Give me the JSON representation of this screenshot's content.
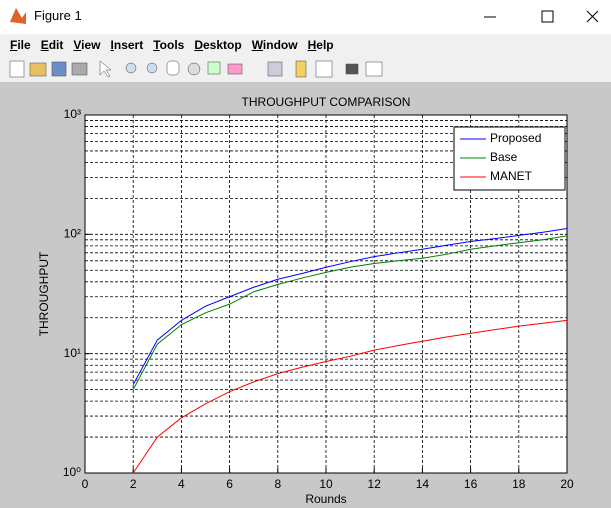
{
  "window": {
    "title": "Figure 1",
    "menu": [
      "File",
      "Edit",
      "View",
      "Insert",
      "Tools",
      "Desktop",
      "Window",
      "Help"
    ]
  },
  "chart_data": {
    "type": "line",
    "title": "THROUGHPUT COMPARISON",
    "x_label": "Rounds",
    "y_label": "THROUGHPUT",
    "x": [
      2,
      3,
      4,
      5,
      6,
      7,
      8,
      9,
      10,
      11,
      12,
      13,
      14,
      15,
      16,
      17,
      18,
      19,
      20
    ],
    "series": [
      {
        "name": "Proposed",
        "color": "#0000ff",
        "values": [
          5.5,
          13,
          19,
          25,
          30,
          36,
          42,
          47,
          53,
          59,
          65,
          70,
          75,
          81,
          87,
          92,
          98,
          104,
          112
        ]
      },
      {
        "name": "Base",
        "color": "#008000",
        "values": [
          5,
          12,
          17.5,
          22,
          26,
          33,
          38,
          43,
          48,
          53,
          57,
          60,
          63,
          68,
          75,
          80,
          85,
          90,
          97
        ]
      },
      {
        "name": "MANET",
        "color": "#ff0000",
        "values": [
          1,
          2,
          2.9,
          3.8,
          4.8,
          5.8,
          6.8,
          7.7,
          8.6,
          9.5,
          10.7,
          11.7,
          12.7,
          13.8,
          14.8,
          15.9,
          17,
          18,
          19
        ]
      }
    ],
    "xlim": [
      0,
      20
    ],
    "xticks": [
      0,
      2,
      4,
      6,
      8,
      10,
      12,
      14,
      16,
      18,
      20
    ],
    "ylim": [
      1,
      1000
    ],
    "yscale": "log",
    "yticks": [
      {
        "value": 1,
        "label": "10⁰"
      },
      {
        "value": 10,
        "label": "10¹"
      },
      {
        "value": 100,
        "label": "10²"
      },
      {
        "value": 1000,
        "label": "10³"
      }
    ],
    "grid": true,
    "minor_grid": true,
    "legend": "upper right"
  }
}
